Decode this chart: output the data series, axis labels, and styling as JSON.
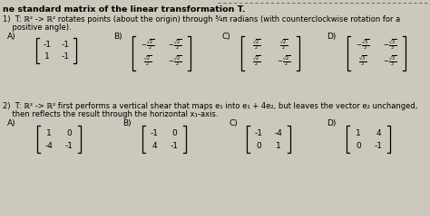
{
  "background_color": "#cdc8bc",
  "top_dash_line": true,
  "title": "ne standard matrix of the linear transformation T.",
  "q1_line1": "1)  T: ℝ² -> ℝ² rotates points (about the origin) through ¾π radians (with counterclockwise rotation for a",
  "q1_line2": "    positive angle).",
  "q1_labels": [
    "A)",
    "B)",
    "C)",
    "D)"
  ],
  "q1_A": [
    [
      "-1",
      "-1"
    ],
    [
      "1",
      "-1"
    ]
  ],
  "q1_B": [
    [
      "-\\frac{\\sqrt{2}}{2}",
      "-\\frac{\\sqrt{2}}{2}"
    ],
    [
      "\\frac{\\sqrt{2}}{2}",
      "-\\frac{\\sqrt{2}}{2}"
    ]
  ],
  "q1_C": [
    [
      "\\frac{\\sqrt{2}}{2}",
      "\\frac{\\sqrt{2}}{2}"
    ],
    [
      "\\frac{\\sqrt{2}}{2}",
      "-\\frac{\\sqrt{2}}{2}"
    ]
  ],
  "q1_D": [
    [
      "-\\frac{\\sqrt{3}}{3}",
      "-\\frac{\\sqrt{3}}{3}"
    ],
    [
      "\\frac{\\sqrt{3}}{3}",
      "-\\frac{\\sqrt{3}}{3}"
    ]
  ],
  "q2_line1": "2)  T: ℝ² -> ℝ² first performs a vertical shear that maps e₁ into e₁ + 4e₂, but leaves the vector e₂ unchanged,",
  "q2_line2": "    then reflects the result through the horizontal x₁-axis.",
  "q2_labels": [
    "A)",
    "B)",
    "C)",
    "D)"
  ],
  "q2_A": [
    [
      "1",
      "0"
    ],
    [
      "-4",
      "-1"
    ]
  ],
  "q2_B": [
    [
      "-1",
      "0"
    ],
    [
      "4",
      "-1"
    ]
  ],
  "q2_C": [
    [
      "-1",
      "-4"
    ],
    [
      "0",
      "1"
    ]
  ],
  "q2_D": [
    [
      "1",
      "4"
    ],
    [
      "0",
      "-1"
    ]
  ]
}
